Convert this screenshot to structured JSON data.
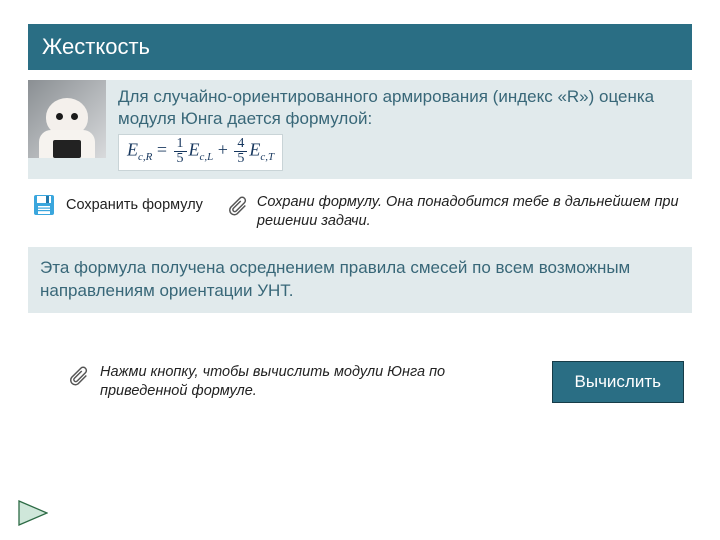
{
  "colors": {
    "primary": "#2a6e84",
    "panel_bg": "#e1eaec",
    "text_muted": "#386778",
    "save_icon": "#3aa6dd",
    "save_icon_dark": "#2277aa",
    "formula_border": "#c9d4d7",
    "formula_text": "#17375e",
    "button_border": "#163c48",
    "nav_arrow_fill": "#cfe7da",
    "nav_arrow_stroke": "#2d6b45"
  },
  "title": "Жесткость",
  "intro": "Для случайно-ориентированного армирования (индекс «R») оценка модуля Юнга дается формулой:",
  "formula": {
    "lhs_var": "E",
    "lhs_sub": "c,R",
    "terms": [
      {
        "num": "1",
        "den": "5",
        "var": "E",
        "sub": "c,L"
      },
      {
        "num": "4",
        "den": "5",
        "var": "E",
        "sub": "c,T"
      }
    ]
  },
  "save_label": "Сохранить формулу",
  "save_hint": "Сохрани формулу. Она понадобится тебе в дальнейшем при решении задачи.",
  "explain": "Эта формула получена осреднением правила смесей по всем возможным направлениям ориентации УНТ.",
  "compute_hint": "Нажми кнопку, чтобы вычислить модули Юнга по приведенной формуле.",
  "compute_label": "Вычислить",
  "icons": {
    "save": "save-disk-icon",
    "hint": "paperclip-icon",
    "nav": "next-arrow-icon"
  }
}
